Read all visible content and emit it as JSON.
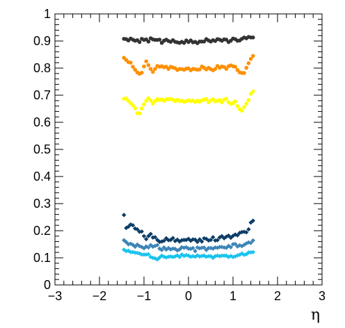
{
  "chart_data": {
    "type": "scatter",
    "title": "",
    "xlabel": "η",
    "ylabel": "",
    "xlim": [
      -3,
      3
    ],
    "ylim": [
      0,
      1
    ],
    "x_ticks": [
      -3,
      -2,
      -1,
      0,
      1,
      2,
      3
    ],
    "x_tick_labels": [
      "−3",
      "−2",
      "−1",
      "0",
      "1",
      "2",
      "3"
    ],
    "y_ticks": [
      0,
      0.1,
      0.2,
      0.3,
      0.4,
      0.5,
      0.6,
      0.7,
      0.8,
      0.9,
      1
    ],
    "y_tick_labels": [
      "0",
      "0.1",
      "0.2",
      "0.3",
      "0.4",
      "0.5",
      "0.6",
      "0.7",
      "0.8",
      "0.9",
      "1"
    ],
    "grid": false,
    "legend": "none",
    "x": [
      -1.45,
      -1.4,
      -1.35,
      -1.3,
      -1.25,
      -1.2,
      -1.15,
      -1.1,
      -1.05,
      -1.0,
      -0.95,
      -0.9,
      -0.85,
      -0.8,
      -0.75,
      -0.7,
      -0.65,
      -0.6,
      -0.55,
      -0.5,
      -0.45,
      -0.4,
      -0.35,
      -0.3,
      -0.25,
      -0.2,
      -0.15,
      -0.1,
      -0.05,
      0.0,
      0.05,
      0.1,
      0.15,
      0.2,
      0.25,
      0.3,
      0.35,
      0.4,
      0.45,
      0.5,
      0.55,
      0.6,
      0.65,
      0.7,
      0.75,
      0.8,
      0.85,
      0.9,
      0.95,
      1.0,
      1.05,
      1.1,
      1.15,
      1.2,
      1.25,
      1.3,
      1.35,
      1.4,
      1.45
    ],
    "series": [
      {
        "color": "#333333",
        "marker": "circle",
        "values": [
          0.908,
          0.907,
          0.902,
          0.909,
          0.905,
          0.901,
          0.903,
          0.896,
          0.908,
          0.904,
          0.906,
          0.898,
          0.91,
          0.906,
          0.904,
          0.904,
          0.905,
          0.893,
          0.901,
          0.905,
          0.9,
          0.897,
          0.903,
          0.897,
          0.895,
          0.893,
          0.897,
          0.893,
          0.902,
          0.896,
          0.902,
          0.895,
          0.897,
          0.892,
          0.898,
          0.898,
          0.898,
          0.907,
          0.902,
          0.898,
          0.903,
          0.9,
          0.907,
          0.905,
          0.901,
          0.906,
          0.905,
          0.896,
          0.901,
          0.909,
          0.907,
          0.901,
          0.902,
          0.908,
          0.913,
          0.91,
          0.915,
          0.913,
          0.913
        ]
      },
      {
        "color": "#ff9000",
        "marker": "circle",
        "values": [
          0.838,
          0.83,
          0.822,
          0.82,
          0.805,
          0.794,
          0.784,
          0.779,
          0.783,
          0.806,
          0.825,
          0.811,
          0.797,
          0.786,
          0.797,
          0.808,
          0.805,
          0.807,
          0.803,
          0.805,
          0.797,
          0.805,
          0.802,
          0.8,
          0.793,
          0.797,
          0.796,
          0.794,
          0.798,
          0.799,
          0.792,
          0.797,
          0.796,
          0.794,
          0.795,
          0.806,
          0.801,
          0.795,
          0.801,
          0.796,
          0.792,
          0.797,
          0.808,
          0.801,
          0.806,
          0.804,
          0.797,
          0.807,
          0.81,
          0.807,
          0.805,
          0.793,
          0.784,
          0.782,
          0.782,
          0.801,
          0.818,
          0.834,
          0.845
        ]
      },
      {
        "color": "#ffff00",
        "marker": "circle",
        "values": [
          0.687,
          0.688,
          0.679,
          0.671,
          0.662,
          0.652,
          0.634,
          0.633,
          0.651,
          0.666,
          0.679,
          0.689,
          0.68,
          0.669,
          0.678,
          0.686,
          0.682,
          0.685,
          0.679,
          0.685,
          0.685,
          0.686,
          0.684,
          0.678,
          0.683,
          0.678,
          0.68,
          0.676,
          0.678,
          0.681,
          0.678,
          0.68,
          0.675,
          0.68,
          0.676,
          0.681,
          0.684,
          0.686,
          0.674,
          0.681,
          0.685,
          0.677,
          0.679,
          0.682,
          0.674,
          0.684,
          0.687,
          0.674,
          0.668,
          0.671,
          0.677,
          0.66,
          0.648,
          0.643,
          0.656,
          0.669,
          0.682,
          0.705,
          0.714
        ]
      },
      {
        "color": "#0d3d66",
        "marker": "diamond",
        "values": [
          0.258,
          0.21,
          0.215,
          0.223,
          0.22,
          0.208,
          0.205,
          0.196,
          0.197,
          0.18,
          0.169,
          0.18,
          0.188,
          0.175,
          0.176,
          0.166,
          0.159,
          0.16,
          0.163,
          0.172,
          0.165,
          0.166,
          0.173,
          0.162,
          0.167,
          0.16,
          0.165,
          0.166,
          0.166,
          0.17,
          0.163,
          0.168,
          0.167,
          0.159,
          0.168,
          0.16,
          0.172,
          0.17,
          0.164,
          0.166,
          0.176,
          0.164,
          0.165,
          0.175,
          0.18,
          0.172,
          0.178,
          0.182,
          0.174,
          0.181,
          0.186,
          0.183,
          0.192,
          0.195,
          0.196,
          0.194,
          0.205,
          0.23,
          0.237
        ]
      },
      {
        "color": "#3d85b8",
        "marker": "diamond",
        "values": [
          0.165,
          0.158,
          0.15,
          0.152,
          0.148,
          0.141,
          0.149,
          0.143,
          0.14,
          0.135,
          0.142,
          0.138,
          0.147,
          0.141,
          0.144,
          0.147,
          0.134,
          0.129,
          0.138,
          0.13,
          0.136,
          0.131,
          0.134,
          0.133,
          0.127,
          0.131,
          0.139,
          0.137,
          0.139,
          0.134,
          0.133,
          0.136,
          0.125,
          0.138,
          0.135,
          0.137,
          0.138,
          0.129,
          0.136,
          0.136,
          0.134,
          0.138,
          0.137,
          0.14,
          0.14,
          0.138,
          0.137,
          0.144,
          0.139,
          0.15,
          0.151,
          0.142,
          0.146,
          0.143,
          0.148,
          0.153,
          0.157,
          0.155,
          0.164
        ]
      },
      {
        "color": "#1ac3ee",
        "marker": "diamond",
        "values": [
          0.13,
          0.125,
          0.126,
          0.121,
          0.121,
          0.119,
          0.118,
          0.116,
          0.112,
          0.112,
          0.112,
          0.113,
          0.103,
          0.1,
          0.098,
          0.094,
          0.101,
          0.108,
          0.104,
          0.101,
          0.104,
          0.105,
          0.103,
          0.105,
          0.109,
          0.103,
          0.112,
          0.107,
          0.11,
          0.108,
          0.104,
          0.106,
          0.104,
          0.109,
          0.105,
          0.107,
          0.108,
          0.104,
          0.106,
          0.106,
          0.1,
          0.106,
          0.108,
          0.106,
          0.108,
          0.108,
          0.108,
          0.103,
          0.107,
          0.103,
          0.105,
          0.109,
          0.111,
          0.116,
          0.111,
          0.113,
          0.12,
          0.12,
          0.121
        ]
      }
    ]
  }
}
